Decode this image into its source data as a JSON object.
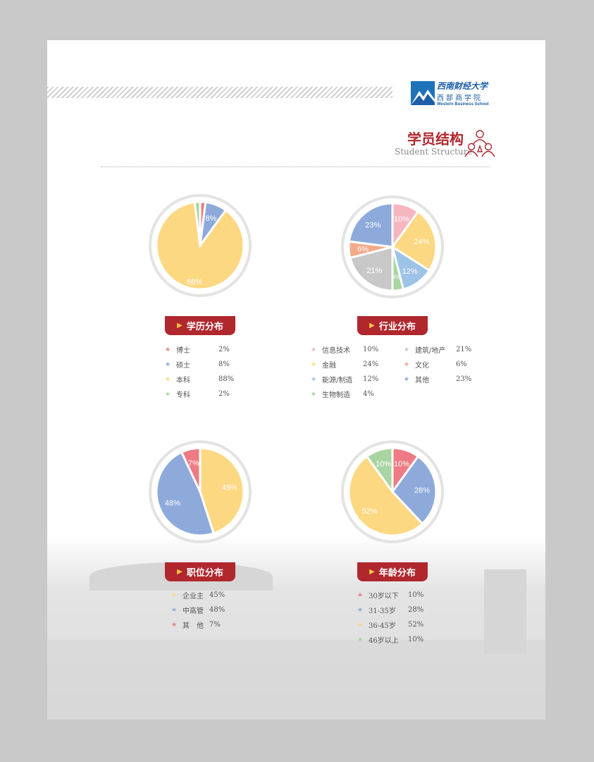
{
  "header": {
    "logo_cn": "西南财经大学",
    "logo_school": "西部商学院",
    "logo_en": "Western Business School",
    "title": "学员结构",
    "subtitle": "Student Structure"
  },
  "colors": {
    "accent": "#b0272d",
    "yellow": "#fdd882",
    "blue": "#8eaadb",
    "red": "#ee7b84",
    "green": "#a8d5a2",
    "pink": "#f6b6c0",
    "gray": "#c8c8c8",
    "orange": "#f4a988",
    "lightblue": "#9dc3e6"
  },
  "chart_data": [
    {
      "type": "pie",
      "title": "学历分布",
      "labels": [
        "博士",
        "硕士",
        "本科",
        "专科"
      ],
      "values": [
        2,
        8,
        88,
        2
      ],
      "value_labels": [
        "2%",
        "8%",
        "88%",
        "2%"
      ],
      "colors": [
        "#ee7b84",
        "#8eaadb",
        "#fdd882",
        "#a8d5a2"
      ],
      "show_label": [
        false,
        true,
        true,
        false
      ]
    },
    {
      "type": "pie",
      "title": "行业分布",
      "labels": [
        "信息技术",
        "金融",
        "能源/制造",
        "生物制造",
        "建筑/地产",
        "文化",
        "其他"
      ],
      "values": [
        10,
        24,
        12,
        4,
        21,
        6,
        23
      ],
      "value_labels": [
        "10%",
        "24%",
        "12%",
        "4%",
        "21%",
        "6%",
        "23%"
      ],
      "colors": [
        "#f6b6c0",
        "#fdd882",
        "#9dc3e6",
        "#a8d5a2",
        "#c8c8c8",
        "#f4a988",
        "#8eaadb"
      ],
      "show_label": [
        true,
        true,
        true,
        true,
        true,
        true,
        true
      ]
    },
    {
      "type": "pie",
      "title": "职位分布",
      "labels": [
        "企业主",
        "中高管",
        "其　他"
      ],
      "values": [
        45,
        48,
        7
      ],
      "value_labels": [
        "45%",
        "48%",
        "7%"
      ],
      "colors": [
        "#fdd882",
        "#8eaadb",
        "#ee7b84"
      ],
      "show_label": [
        true,
        true,
        true
      ]
    },
    {
      "type": "pie",
      "title": "年龄分布",
      "labels": [
        "30岁以下",
        "31-35岁",
        "36-45岁",
        "46岁以上"
      ],
      "values": [
        10,
        28,
        52,
        10
      ],
      "value_labels": [
        "10%",
        "28%",
        "52%",
        "10%"
      ],
      "colors": [
        "#ee7b84",
        "#8eaadb",
        "#fdd882",
        "#a8d5a2"
      ],
      "show_label": [
        true,
        true,
        true,
        true
      ]
    }
  ]
}
